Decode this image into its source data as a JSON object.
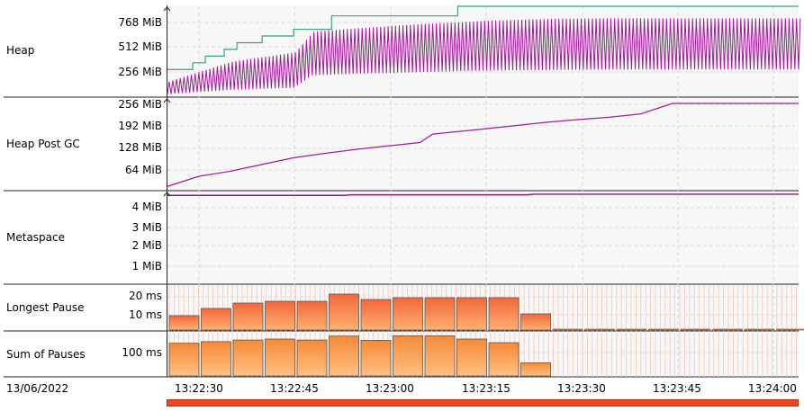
{
  "rows": [
    {
      "id": "heap",
      "label": "Heap",
      "ticks": [
        "768 MiB",
        "512 MiB",
        "256 MiB"
      ]
    },
    {
      "id": "heap-post-gc",
      "label": "Heap Post GC",
      "ticks": [
        "256 MiB",
        "192 MiB",
        "128 MiB",
        "64 MiB"
      ]
    },
    {
      "id": "metaspace",
      "label": "Metaspace",
      "ticks": [
        "4 MiB",
        "3 MiB",
        "2 MiB",
        "1 MiB"
      ]
    },
    {
      "id": "longest-pause",
      "label": "Longest Pause",
      "ticks": [
        "20 ms",
        "10 ms"
      ]
    },
    {
      "id": "sum-of-pauses",
      "label": "Sum of Pauses",
      "ticks": [
        "100 ms"
      ]
    }
  ],
  "date": "13/06/2022",
  "time_ticks": [
    "13:22:30",
    "13:22:45",
    "13:23:00",
    "13:23:15",
    "13:23:30",
    "13:23:45",
    "13:24:00"
  ],
  "colors": {
    "committed": "#3aa37a",
    "used": "#a01c96",
    "metaspace": "#8a1a6a",
    "bar_top": "#f2683a",
    "bar_bottom": "#ffb070",
    "sum_top": "#f58a3a",
    "sum_bottom": "#ffc080",
    "range": "#f0481c"
  },
  "chart_data": [
    {
      "type": "line",
      "title": "Heap",
      "unit": "MiB",
      "ylim": [
        0,
        860
      ],
      "series": [
        {
          "values_committed_steps": [
            [
              0,
              256
            ],
            [
              4,
              320
            ],
            [
              6,
              384
            ],
            [
              9,
              448
            ],
            [
              11,
              512
            ],
            [
              15,
              576
            ],
            [
              20,
              640
            ],
            [
              26,
              768
            ],
            [
              46,
              860
            ],
            [
              100,
              860
            ]
          ]
        },
        {
          "values_used_min": [
            [
              0,
              20
            ],
            [
              10,
              60
            ],
            [
              20,
              80
            ],
            [
              23,
              200
            ],
            [
              30,
              215
            ],
            [
              40,
              230
            ],
            [
              50,
              245
            ],
            [
              60,
              250
            ],
            [
              70,
              255
            ],
            [
              100,
              256
            ]
          ]
        },
        {
          "values_used_max": [
            [
              0,
              140
            ],
            [
              10,
              330
            ],
            [
              20,
              420
            ],
            [
              23,
              620
            ],
            [
              30,
              650
            ],
            [
              40,
              690
            ],
            [
              50,
              720
            ],
            [
              60,
              740
            ],
            [
              70,
              745
            ],
            [
              100,
              745
            ]
          ]
        }
      ]
    },
    {
      "type": "line",
      "title": "Heap Post GC",
      "unit": "MiB",
      "ylim": [
        0,
        272
      ],
      "series": [
        {
          "values": [
            [
              0,
              10
            ],
            [
              5,
              40
            ],
            [
              10,
              55
            ],
            [
              15,
              75
            ],
            [
              20,
              95
            ],
            [
              25,
              108
            ],
            [
              30,
              120
            ],
            [
              35,
              130
            ],
            [
              40,
              140
            ],
            [
              42,
              165
            ],
            [
              50,
              180
            ],
            [
              55,
              190
            ],
            [
              60,
              200
            ],
            [
              65,
              208
            ],
            [
              70,
              215
            ],
            [
              75,
              225
            ],
            [
              80,
              256
            ],
            [
              100,
              256
            ]
          ]
        }
      ]
    },
    {
      "type": "line",
      "title": "Metaspace",
      "unit": "MiB",
      "ylim": [
        0,
        4.8
      ],
      "series": [
        {
          "values": [
            [
              0,
              4.6
            ],
            [
              28,
              4.6
            ],
            [
              29,
              4.63
            ],
            [
              57,
              4.63
            ],
            [
              58,
              4.66
            ],
            [
              100,
              4.66
            ]
          ]
        }
      ]
    },
    {
      "type": "bar",
      "title": "Longest Pause",
      "unit": "ms",
      "ylim": [
        0,
        25
      ],
      "values": [
        8,
        12,
        15,
        16,
        16,
        20,
        17,
        18,
        18,
        18,
        18,
        9,
        0.5,
        0.3,
        0.3,
        0.3,
        0.3,
        0.3,
        0.3,
        0.3
      ]
    },
    {
      "type": "bar",
      "title": "Sum of Pauses",
      "unit": "ms",
      "ylim": [
        0,
        135
      ],
      "values": [
        100,
        105,
        110,
        113,
        110,
        122,
        109,
        123,
        123,
        113,
        102,
        40,
        0,
        0,
        0,
        0,
        0,
        0,
        0,
        0
      ]
    }
  ]
}
